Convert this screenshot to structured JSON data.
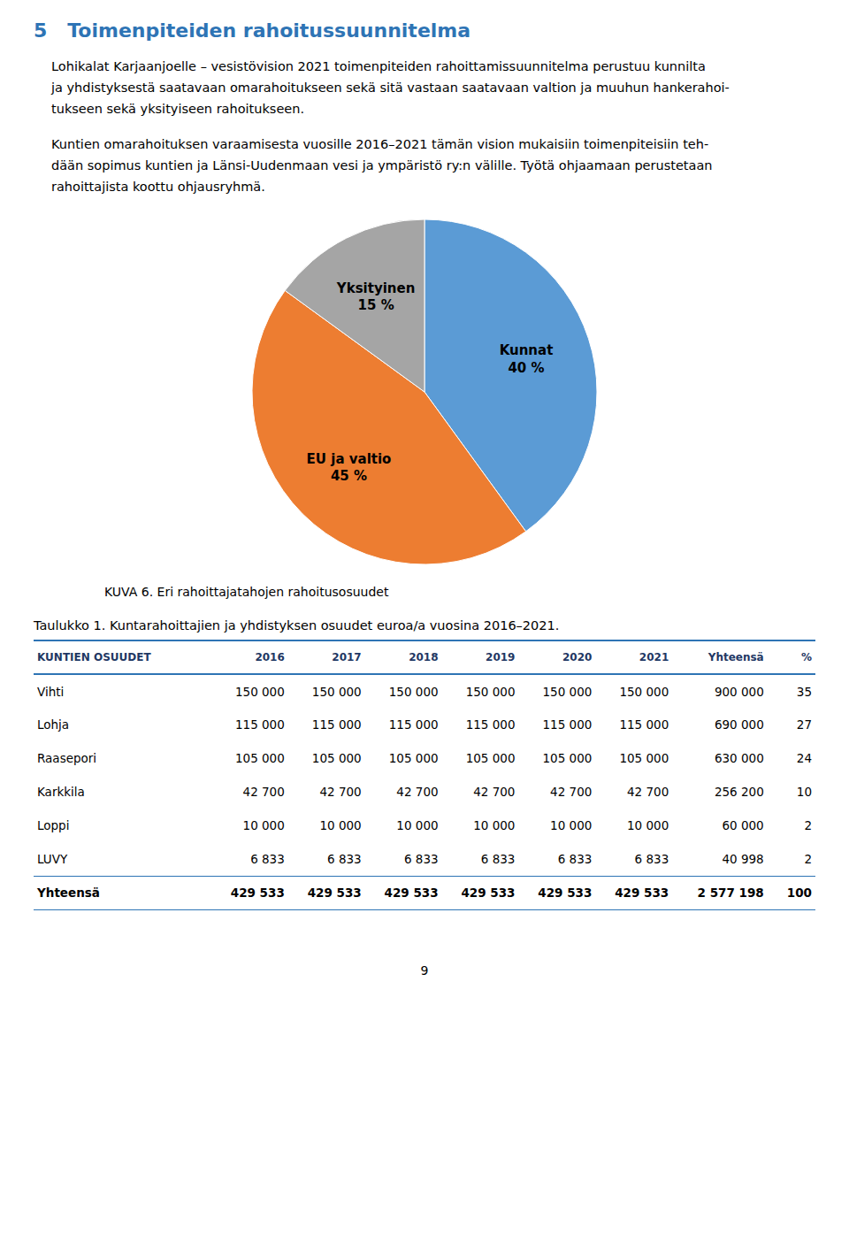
{
  "chart_data": [
    {
      "type": "pie",
      "title": "KUVA 6. Eri rahoittajatahojen rahoitusosuudet",
      "categories": [
        "Kunnat",
        "EU ja valtio",
        "Yksityinen"
      ],
      "values": [
        40,
        45,
        15
      ],
      "value_labels": [
        "40 %",
        "45 %",
        "15 %"
      ],
      "colors": [
        "#5B9BD5",
        "#ED7D31",
        "#A5A5A5"
      ],
      "data_labels": true,
      "annotations": [
        [
          "5   Toimenpiteiden rahoitussuunnitelma"
        ],
        [
          "Lohikalat Karjaanjoelle – vesistövision 2021 toimenpiteiden rahoittamissuunnitelma perustuu kunnilta",
          "ja yhdistyksestä saatavaan omarahoitukseen sekä sitä vastaan saatavaan valtion ja muuhun hankerahoi-",
          "tukseen sekä yksityiseen rahoitukseen."
        ],
        [
          "Kuntien omarahoituksen varaamisesta vuosille 2016–2021 tämän vision mukaisiin toimenpiteisiin teh-",
          "dään sopimus kuntien ja Länsi-Uudenmaan vesi ja ympäristö ry:n välille. Työtä ohjaamaan perustetaan",
          "rahoittajista koottu ohjausryhmä."
        ],
        [
          "9"
        ]
      ]
    },
    {
      "type": "table",
      "title": "Taulukko 1. Kuntarahoittajien ja yhdistyksen osuudet euroa/a vuosina 2016–2021.",
      "columns": [
        "KUNTIEN OSUUDET",
        "2016",
        "2017",
        "2018",
        "2019",
        "2020",
        "2021",
        "Yhteensä",
        "%"
      ],
      "rows": [
        [
          "Vihti",
          "150 000",
          "150 000",
          "150 000",
          "150 000",
          "150 000",
          "150 000",
          "900 000",
          "35"
        ],
        [
          "Lohja",
          "115 000",
          "115 000",
          "115 000",
          "115 000",
          "115 000",
          "115 000",
          "690 000",
          "27"
        ],
        [
          "Raasepori",
          "105 000",
          "105 000",
          "105 000",
          "105 000",
          "105 000",
          "105 000",
          "630 000",
          "24"
        ],
        [
          "Karkkila",
          "42 700",
          "42 700",
          "42 700",
          "42 700",
          "42 700",
          "42 700",
          "256 200",
          "10"
        ],
        [
          "Loppi",
          "10 000",
          "10 000",
          "10 000",
          "10 000",
          "10 000",
          "10 000",
          "60 000",
          "2"
        ],
        [
          "LUVY",
          "6 833",
          "6 833",
          "6 833",
          "6 833",
          "6 833",
          "6 833",
          "40 998",
          "2"
        ],
        [
          "Yhteensä",
          "429 533",
          "429 533",
          "429 533",
          "429 533",
          "429 533",
          "429 533",
          "2 577 198",
          "100"
        ]
      ]
    }
  ]
}
